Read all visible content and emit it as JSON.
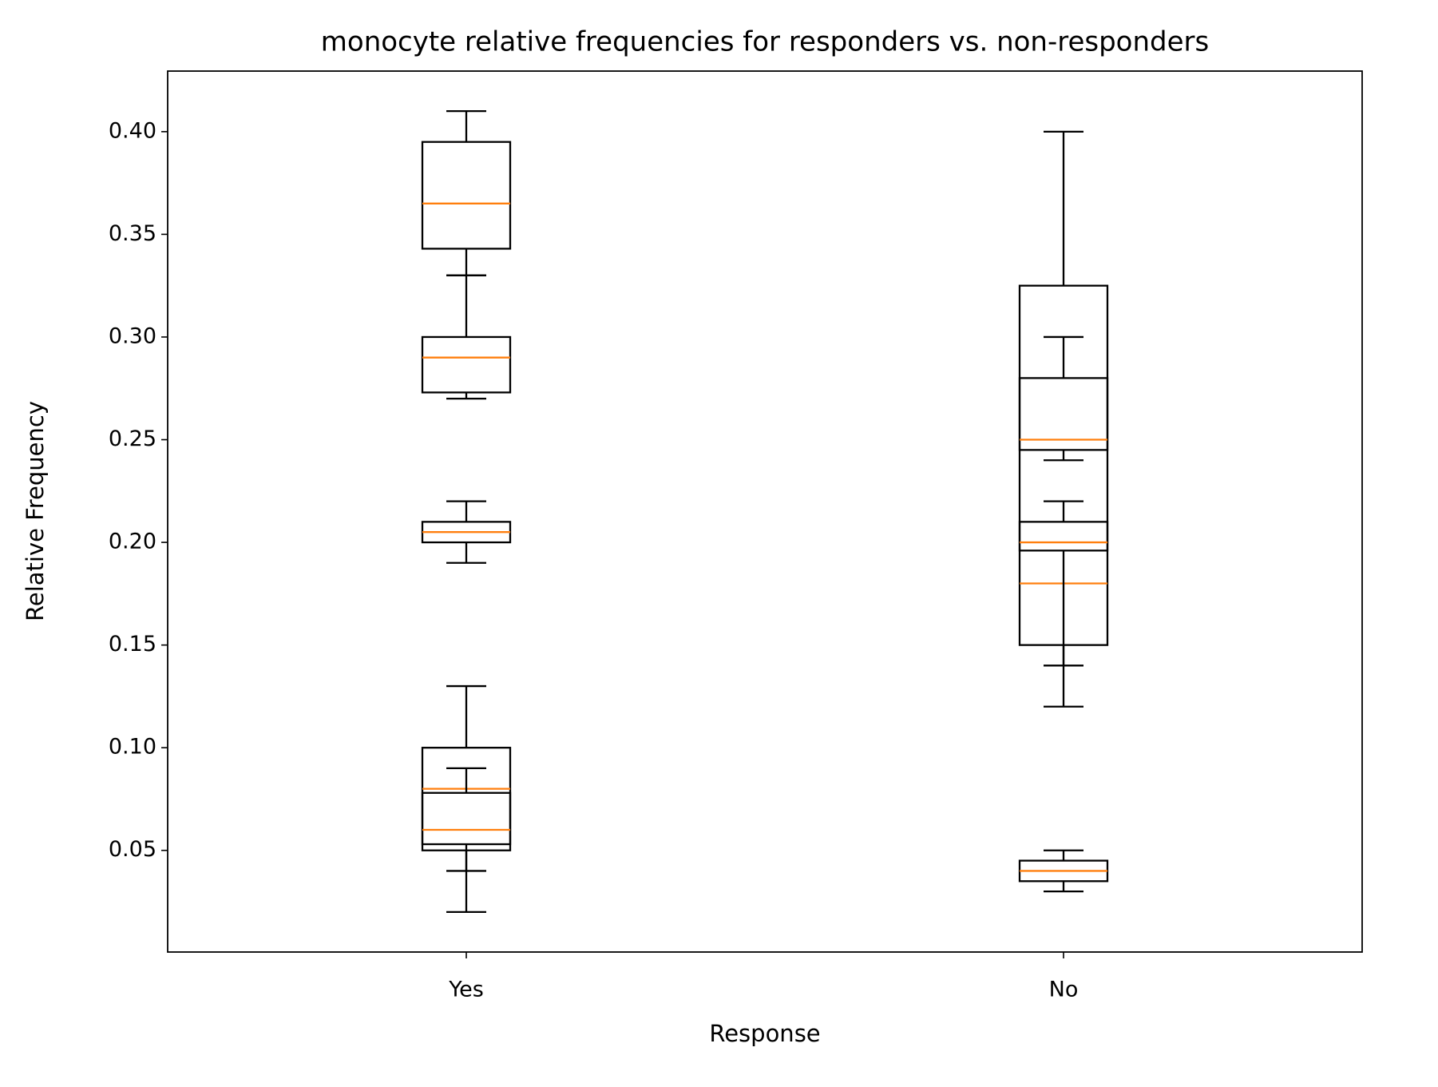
{
  "chart_data": {
    "type": "box",
    "title": "monocyte relative frequencies for responders vs. non-responders",
    "x_label": "Response",
    "y_label": "Relative Frequency",
    "categories": [
      "Yes",
      "No"
    ],
    "data": [
      [
        {
          "whislo": 0.33,
          "q1": 0.343,
          "med": 0.365,
          "q3": 0.395,
          "whishi": 0.41
        },
        {
          "whislo": 0.27,
          "q1": 0.273,
          "med": 0.29,
          "q3": 0.3,
          "whishi": 0.33
        },
        {
          "whislo": 0.19,
          "q1": 0.2,
          "med": 0.205,
          "q3": 0.21,
          "whishi": 0.22
        },
        {
          "whislo": 0.02,
          "q1": 0.05,
          "med": 0.08,
          "q3": 0.1,
          "whishi": 0.13
        },
        {
          "whislo": 0.04,
          "q1": 0.053,
          "med": 0.06,
          "q3": 0.078,
          "whishi": 0.09
        }
      ],
      [
        {
          "whislo": 0.12,
          "q1": 0.15,
          "med": 0.18,
          "q3": 0.325,
          "whishi": 0.4
        },
        {
          "whislo": 0.24,
          "q1": 0.245,
          "med": 0.25,
          "q3": 0.28,
          "whishi": 0.3
        },
        {
          "whislo": 0.14,
          "q1": 0.196,
          "med": 0.2,
          "q3": 0.21,
          "whishi": 0.22
        },
        {
          "whislo": 0.03,
          "q1": 0.035,
          "med": 0.04,
          "q3": 0.045,
          "whishi": 0.05
        }
      ]
    ],
    "box_color": "#000000",
    "median_color": "#ff7f0e",
    "ylim": [
      0.0005,
      0.4295
    ],
    "yticks": [
      0.05,
      {
        "value": 0.1,
        "label": "0.10"
      },
      0.15,
      {
        "value": 0.2,
        "label": "0.20"
      },
      0.25,
      {
        "value": 0.3,
        "label": "0.30"
      },
      0.35,
      {
        "value": 0.4,
        "label": "0.40"
      }
    ],
    "grid": false
  }
}
